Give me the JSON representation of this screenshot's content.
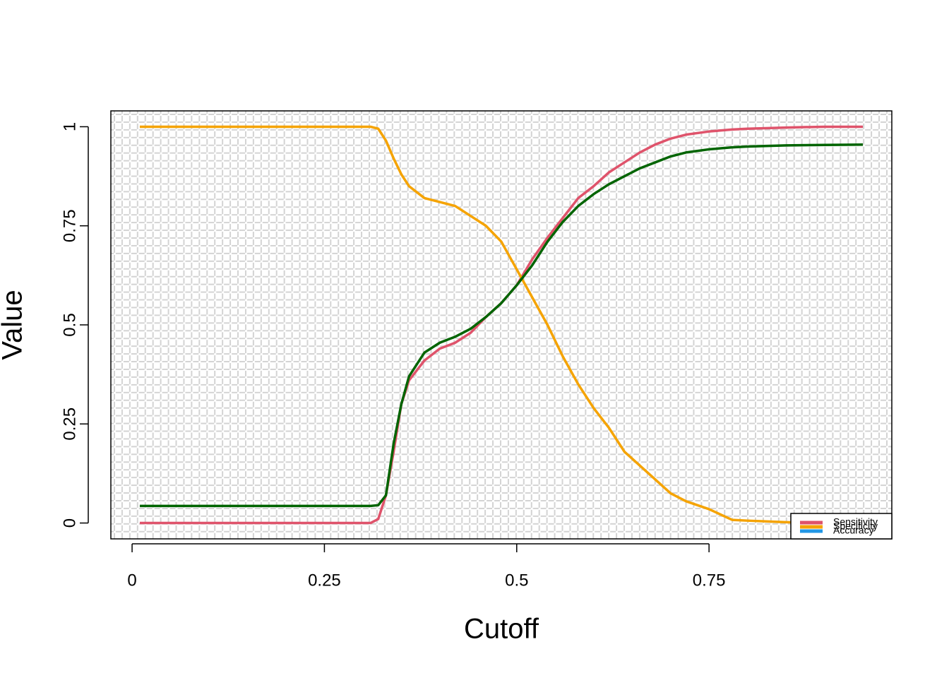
{
  "chart_data": {
    "type": "line",
    "xlabel": "Cutoff",
    "ylabel": "Value",
    "x": [
      0.01,
      0.1,
      0.2,
      0.31,
      0.32,
      0.33,
      0.34,
      0.35,
      0.36,
      0.38,
      0.4,
      0.42,
      0.44,
      0.46,
      0.48,
      0.5,
      0.52,
      0.54,
      0.56,
      0.58,
      0.6,
      0.62,
      0.64,
      0.66,
      0.68,
      0.7,
      0.72,
      0.75,
      0.78,
      0.8,
      0.85,
      0.9,
      0.95
    ],
    "series": [
      {
        "name": "Sensitivity",
        "color": "#DF536B",
        "legend_color": "#DF536B",
        "values": [
          0,
          0,
          0,
          0,
          0.01,
          0.07,
          0.18,
          0.3,
          0.36,
          0.41,
          0.44,
          0.455,
          0.48,
          0.52,
          0.555,
          0.6,
          0.665,
          0.72,
          0.77,
          0.82,
          0.85,
          0.885,
          0.91,
          0.935,
          0.955,
          0.97,
          0.98,
          0.988,
          0.993,
          0.995,
          0.998,
          1,
          1
        ]
      },
      {
        "name": "Specificity",
        "color": "#F5A300",
        "legend_color": "#F5A300",
        "values": [
          1,
          1,
          1,
          1,
          0.995,
          0.965,
          0.92,
          0.88,
          0.85,
          0.82,
          0.81,
          0.8,
          0.775,
          0.75,
          0.71,
          0.64,
          0.57,
          0.5,
          0.42,
          0.35,
          0.29,
          0.24,
          0.18,
          0.145,
          0.11,
          0.075,
          0.055,
          0.035,
          0.008,
          0.006,
          0.002,
          0,
          0
        ]
      },
      {
        "name": "Accuracy",
        "color": "#006400",
        "legend_color": "#2297E6",
        "values": [
          0.043,
          0.043,
          0.043,
          0.043,
          0.045,
          0.07,
          0.2,
          0.3,
          0.37,
          0.43,
          0.455,
          0.47,
          0.49,
          0.52,
          0.555,
          0.6,
          0.65,
          0.71,
          0.76,
          0.8,
          0.83,
          0.855,
          0.875,
          0.895,
          0.91,
          0.925,
          0.935,
          0.943,
          0.948,
          0.95,
          0.953,
          0.954,
          0.955
        ]
      }
    ],
    "xlim": [
      -0.0276,
      0.9876
    ],
    "ylim": [
      -0.04,
      1.04
    ],
    "xticks": [
      0,
      0.25,
      0.5,
      0.75
    ],
    "yticks": [
      0,
      0.25,
      0.5,
      0.75,
      1
    ],
    "legend": "bottomright"
  }
}
